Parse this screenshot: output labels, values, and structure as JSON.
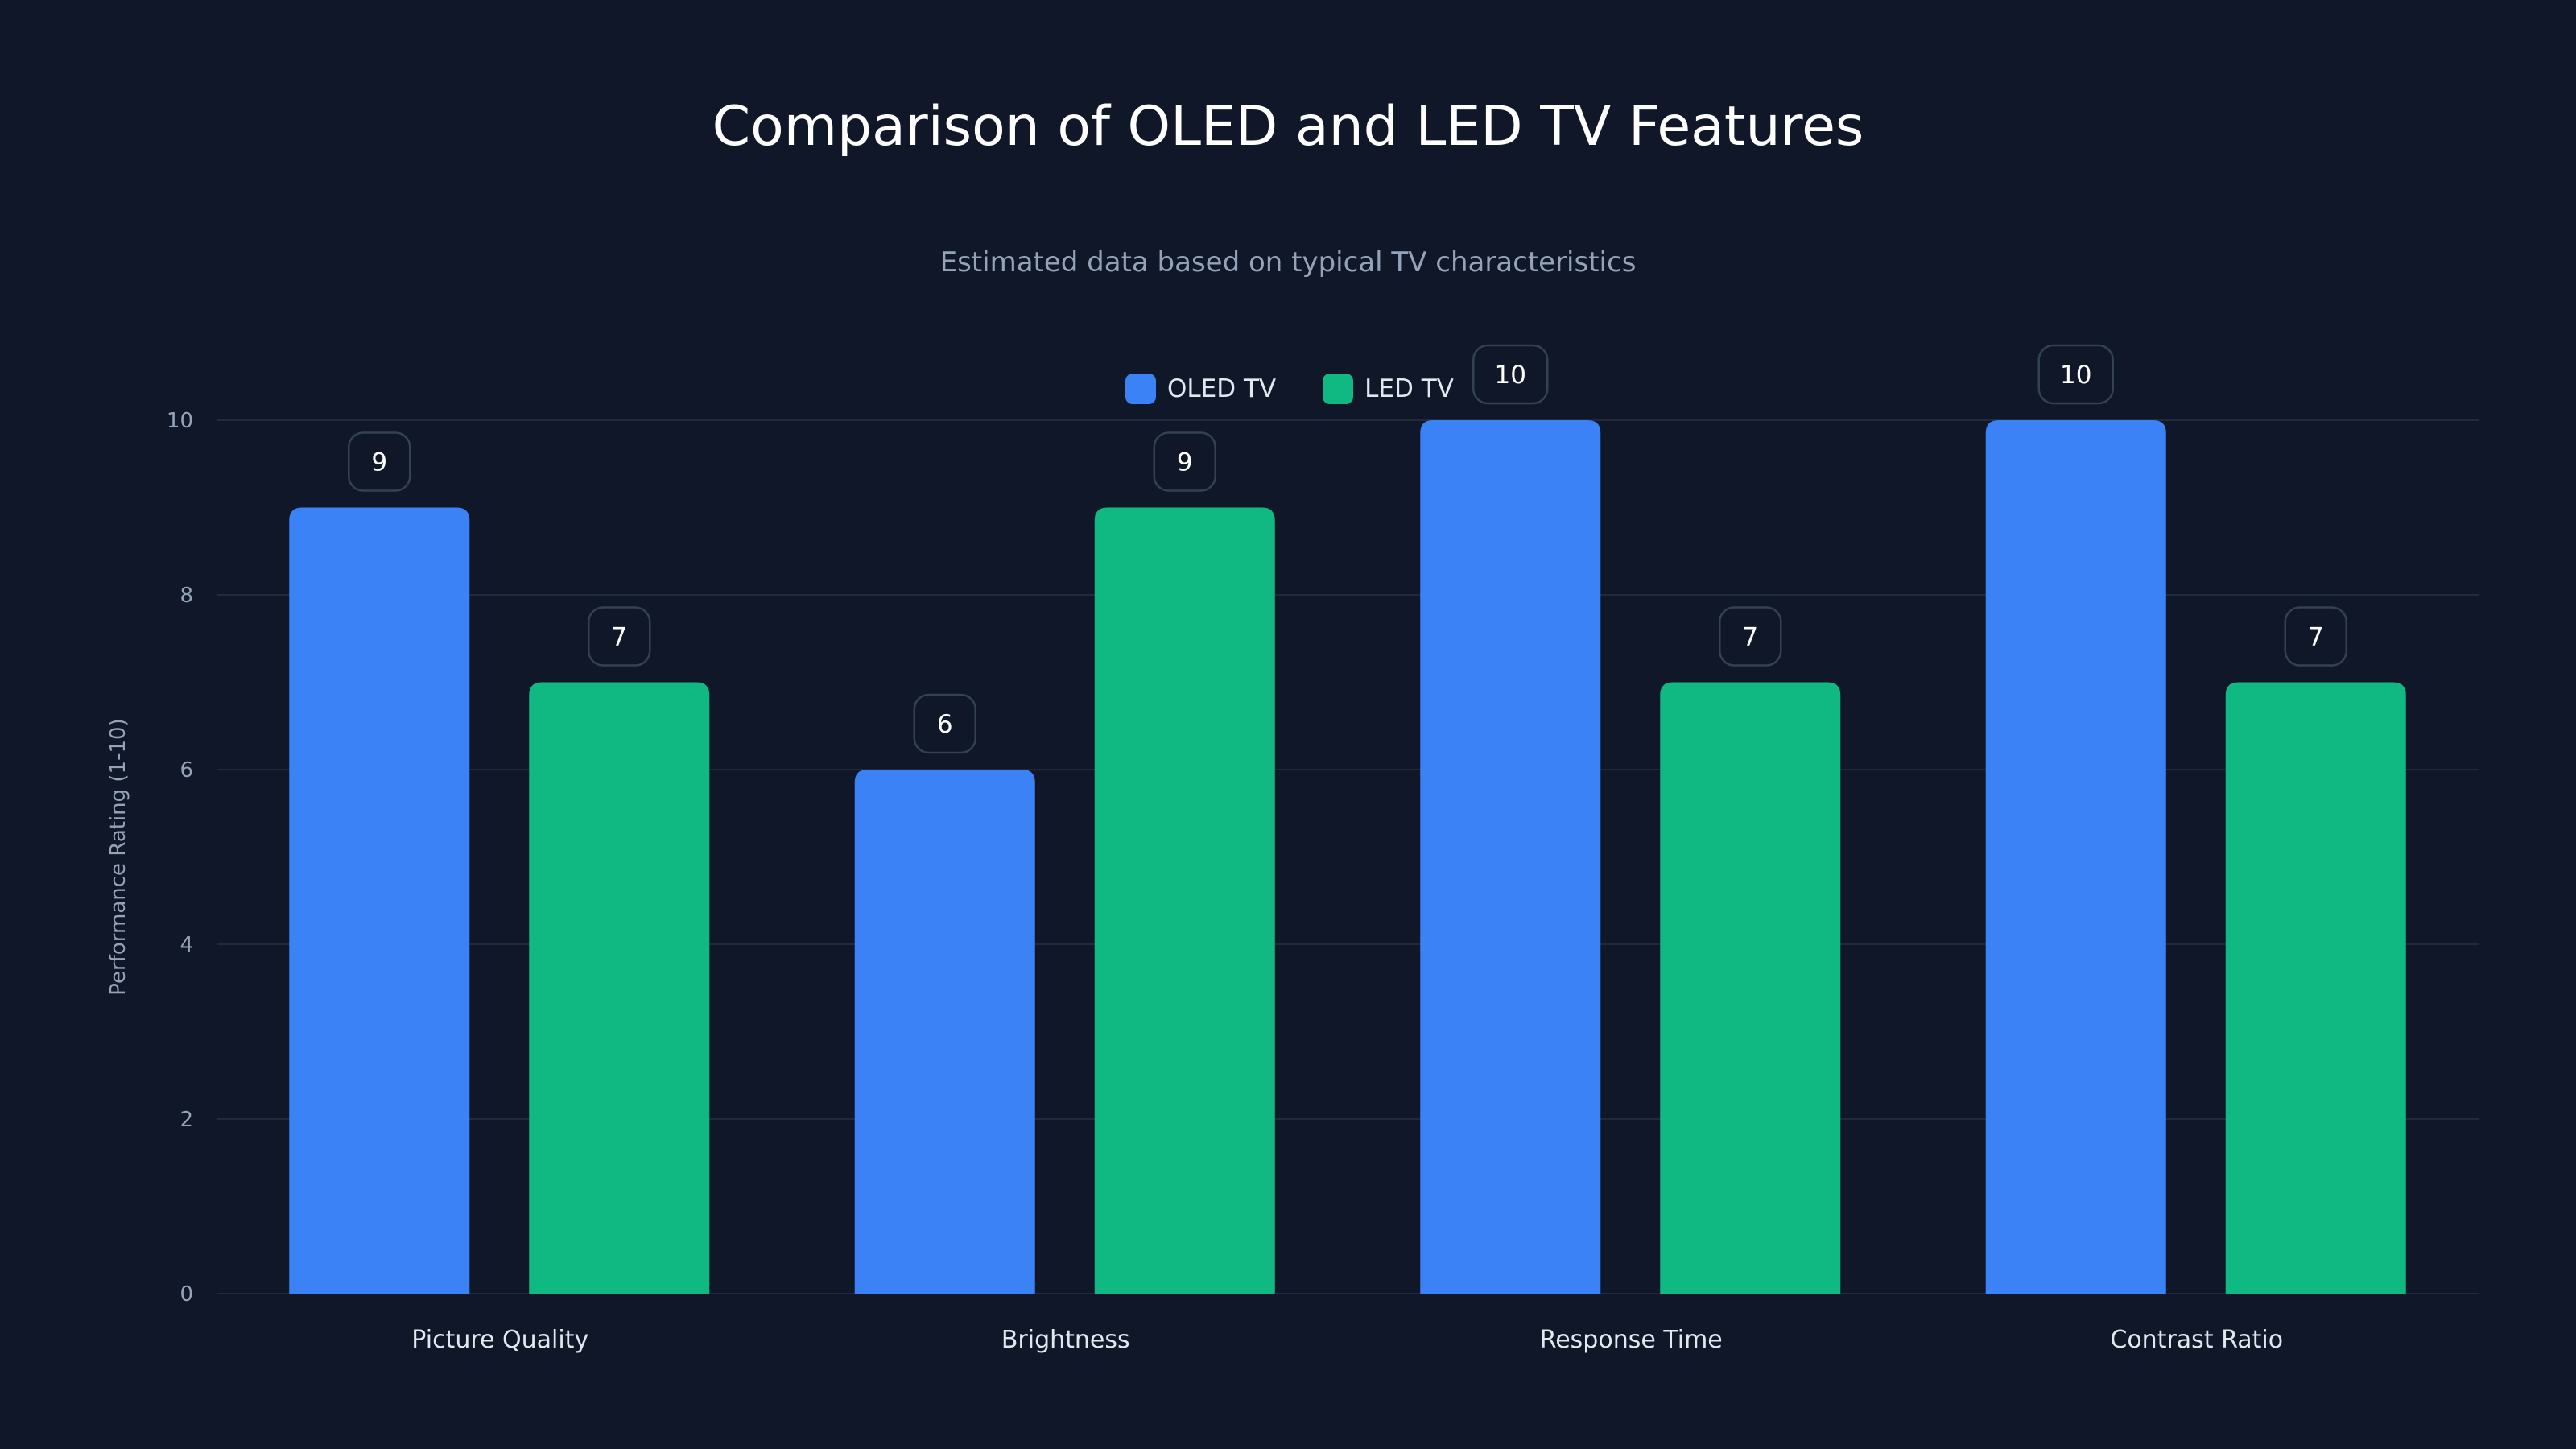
{
  "chart_data": {
    "type": "bar",
    "title": "Comparison of OLED and LED TV Features",
    "subtitle": "Estimated data based on typical TV characteristics",
    "xlabel": "",
    "ylabel": "Performance Rating (1-10)",
    "ylim": [
      0,
      10
    ],
    "yticks": [
      0,
      2,
      4,
      6,
      8,
      10
    ],
    "grid": true,
    "legend_position": "top-center",
    "categories": [
      "Picture Quality",
      "Brightness",
      "Response Time",
      "Contrast Ratio"
    ],
    "series": [
      {
        "name": "OLED TV",
        "color": "#3b82f6",
        "values": [
          9,
          6,
          10,
          10
        ]
      },
      {
        "name": "LED TV",
        "color": "#10b981",
        "values": [
          7,
          9,
          7,
          7
        ]
      }
    ]
  }
}
